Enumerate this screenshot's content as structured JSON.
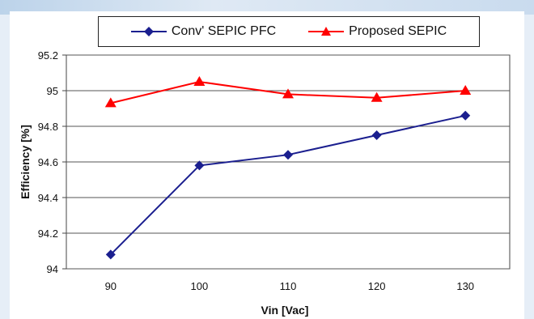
{
  "chart_data": {
    "type": "line",
    "title": "",
    "xlabel": "Vin [Vac]",
    "ylabel": "Efficiency [%]",
    "x": [
      90,
      100,
      110,
      120,
      130
    ],
    "ylim": [
      94,
      95.2
    ],
    "yticks": [
      "94",
      "94.2",
      "94.4",
      "94.6",
      "94.8",
      "95",
      "95.2"
    ],
    "grid": true,
    "legend_position": "top",
    "series": [
      {
        "name": "Conv' SEPIC PFC",
        "values": [
          94.08,
          94.58,
          94.64,
          94.75,
          94.86
        ],
        "color": "#1b1f8f",
        "marker": "diamond"
      },
      {
        "name": "Proposed SEPIC",
        "values": [
          94.93,
          95.05,
          94.98,
          94.96,
          95.0
        ],
        "color": "#ff0000",
        "marker": "triangle"
      }
    ]
  }
}
